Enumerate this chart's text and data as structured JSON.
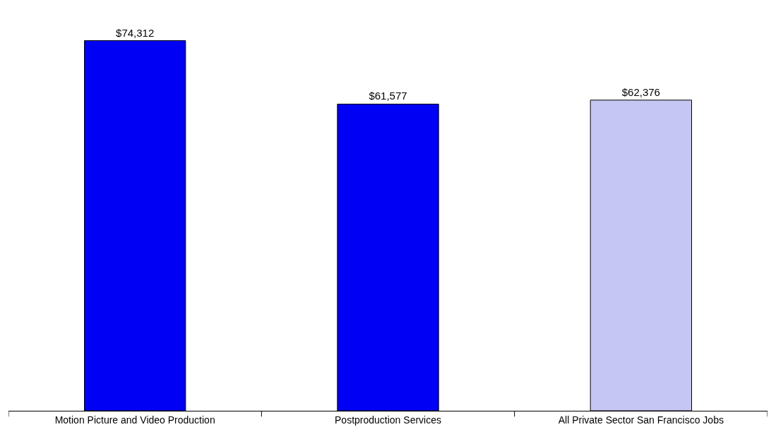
{
  "chart_data": {
    "type": "bar",
    "categories": [
      "Motion Picture and Video Production",
      "Postproduction Services",
      "All Private Sector San Francisco Jobs"
    ],
    "values": [
      74312,
      61577,
      62376
    ],
    "value_labels": [
      "$74,312",
      "$61,577",
      "$62,376"
    ],
    "colors": [
      "#0000f5",
      "#0000f5",
      "#c6c6f4"
    ]
  }
}
